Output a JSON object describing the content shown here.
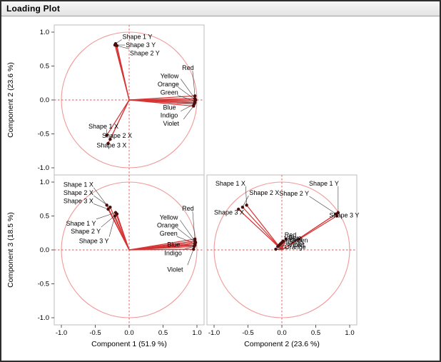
{
  "panel": {
    "title": "Loading Plot"
  },
  "colors": {
    "circle_stroke": "#f19999",
    "ray": "#d63434",
    "crosshair": "#e05050",
    "point": "#4a0d0d",
    "callout": "#3a3a3a",
    "text": "#000000",
    "frame_stroke": "#bdbdbd",
    "axis_tick": "#555555",
    "titlebar_bg": "#ededed",
    "window_border": "#2e2e2e"
  },
  "chart_data": {
    "type": "scatter",
    "subtype": "pca_loading_plot_matrix",
    "title": "Loading Plot",
    "unit_circle": true,
    "crosshairs": true,
    "grid": false,
    "axis": {
      "range": [
        -1.1,
        1.1
      ],
      "tick_values": [
        -1,
        -0.5,
        0,
        0.5,
        1
      ],
      "tick_labels": [
        "-1.0",
        "-0.5",
        "0.0",
        "0.5",
        "1.0"
      ]
    },
    "components": {
      "c1": "Component 1 (51.9 %)",
      "c2": "Component 2 (23.6 %)",
      "c3": "Component 3 (18.5 %)"
    },
    "variables": [
      {
        "name": "Shape 1 X",
        "c1": -0.33,
        "c2": -0.52,
        "c3": 0.66
      },
      {
        "name": "Shape 2 X",
        "c1": -0.28,
        "c2": -0.58,
        "c3": 0.63
      },
      {
        "name": "Shape 3 X",
        "c1": -0.31,
        "c2": -0.64,
        "c3": 0.6
      },
      {
        "name": "Shape 1 Y",
        "c1": -0.2,
        "c2": 0.83,
        "c3": 0.55
      },
      {
        "name": "Shape 2 Y",
        "c1": -0.18,
        "c2": 0.8,
        "c3": 0.53
      },
      {
        "name": "Shape 3 Y",
        "c1": -0.21,
        "c2": 0.81,
        "c3": 0.5
      },
      {
        "name": "Red",
        "c1": 0.97,
        "c2": 0.06,
        "c3": 0.16
      },
      {
        "name": "Yellow",
        "c1": 0.97,
        "c2": 0.02,
        "c3": 0.13
      },
      {
        "name": "Orange",
        "c1": 0.98,
        "c2": 0,
        "c3": 0.11
      },
      {
        "name": "Green",
        "c1": 0.97,
        "c2": -0.02,
        "c3": 0.09
      },
      {
        "name": "Blue",
        "c1": 0.97,
        "c2": -0.04,
        "c3": 0.07
      },
      {
        "name": "Indigo",
        "c1": 0.96,
        "c2": -0.06,
        "c3": 0.05
      },
      {
        "name": "Violet",
        "c1": 0.95,
        "c2": -0.09,
        "c3": 0.01
      }
    ],
    "plots": [
      {
        "id": "c1-c2",
        "x_key": "c1",
        "y_key": "c2",
        "xlabel": "",
        "ylabel": "Component 2 (23.6 %)",
        "show_x_axis": false,
        "show_y_axis": true,
        "labels": [
          {
            "name": "Shape 1 Y",
            "lx": -0.1,
            "ly": 0.9
          },
          {
            "name": "Shape 3 Y",
            "lx": -0.05,
            "ly": 0.78
          },
          {
            "name": "Shape 2 Y",
            "lx": 0.01,
            "ly": 0.66
          },
          {
            "name": "Red",
            "lx": 0.78,
            "ly": 0.44
          },
          {
            "name": "Yellow",
            "lx": 0.46,
            "ly": 0.32
          },
          {
            "name": "Orange",
            "lx": 0.42,
            "ly": 0.2
          },
          {
            "name": "Green",
            "lx": 0.46,
            "ly": 0.08
          },
          {
            "name": "Blue",
            "lx": 0.5,
            "ly": -0.14
          },
          {
            "name": "Indigo",
            "lx": 0.46,
            "ly": -0.26
          },
          {
            "name": "Violet",
            "lx": 0.5,
            "ly": -0.38
          },
          {
            "name": "Shape 1 X",
            "lx": -0.6,
            "ly": -0.42
          },
          {
            "name": "Shape 2 X",
            "lx": -0.4,
            "ly": -0.56
          },
          {
            "name": "Shape 3 X",
            "lx": -0.48,
            "ly": -0.7
          }
        ]
      },
      {
        "id": "c1-c3",
        "x_key": "c1",
        "y_key": "c3",
        "xlabel": "Component 1 (51.9 %)",
        "ylabel": "Component 3 (18.5 %)",
        "show_x_axis": true,
        "show_y_axis": true,
        "labels": [
          {
            "name": "Shape 1 X",
            "lx": -0.97,
            "ly": 0.93
          },
          {
            "name": "Shape 2 X",
            "lx": -0.97,
            "ly": 0.81
          },
          {
            "name": "Shape 3 X",
            "lx": -0.97,
            "ly": 0.69
          },
          {
            "name": "Shape 1 Y",
            "lx": -0.93,
            "ly": 0.36
          },
          {
            "name": "Shape 2 Y",
            "lx": -0.86,
            "ly": 0.24
          },
          {
            "name": "Shape 3 Y",
            "lx": -0.74,
            "ly": 0.1
          },
          {
            "name": "Red",
            "lx": 0.78,
            "ly": 0.58
          },
          {
            "name": "Yellow",
            "lx": 0.45,
            "ly": 0.45
          },
          {
            "name": "Orange",
            "lx": 0.41,
            "ly": 0.33
          },
          {
            "name": "Green",
            "lx": 0.45,
            "ly": 0.21
          },
          {
            "name": "Blue",
            "lx": 0.56,
            "ly": 0.05
          },
          {
            "name": "Indigo",
            "lx": 0.52,
            "ly": -0.08
          },
          {
            "name": "Violet",
            "lx": 0.56,
            "ly": -0.32
          }
        ]
      },
      {
        "id": "c2-c3",
        "x_key": "c2",
        "y_key": "c3",
        "xlabel": "Component 2 (23.6 %)",
        "ylabel": "",
        "show_x_axis": true,
        "show_y_axis": false,
        "labels": [
          {
            "name": "Shape 1 X",
            "lx": -0.98,
            "ly": 0.95
          },
          {
            "name": "Shape 2 X",
            "lx": -0.48,
            "ly": 0.81
          },
          {
            "name": "Shape 3 X",
            "lx": -1.0,
            "ly": 0.52
          },
          {
            "name": "Shape 1 Y",
            "lx": 0.4,
            "ly": 0.95
          },
          {
            "name": "Shape 2 Y",
            "lx": -0.04,
            "ly": 0.8
          },
          {
            "name": "Shape 3 Y",
            "lx": 0.7,
            "ly": 0.48
          },
          {
            "name": "Red",
            "lx": 0.04,
            "ly": 0.19
          },
          {
            "name": "Blue",
            "lx": 0.1,
            "ly": 0.15
          },
          {
            "name": "Yellow",
            "lx": 0.03,
            "ly": 0.13
          },
          {
            "name": "Green",
            "lx": 0.12,
            "ly": 0.11
          },
          {
            "name": "Indigo",
            "lx": 0.06,
            "ly": 0.08
          },
          {
            "name": "Violet",
            "lx": 0.1,
            "ly": 0.04
          },
          {
            "name": "Orange",
            "lx": 0.04,
            "ly": 0.01
          }
        ]
      }
    ]
  }
}
